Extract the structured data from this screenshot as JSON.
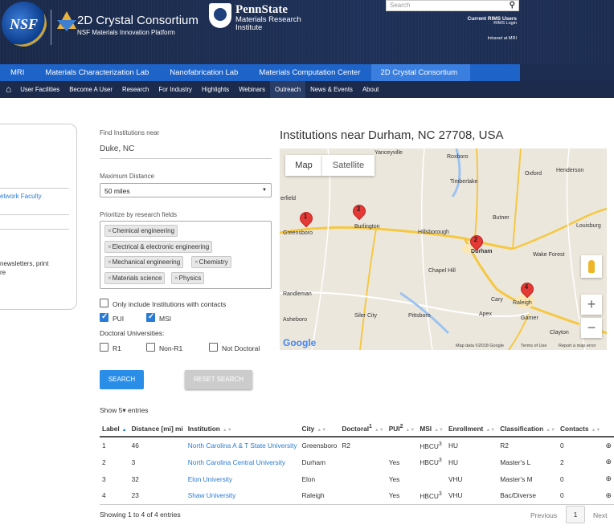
{
  "header": {
    "nsf_logo_text": "NSF",
    "consortium_title": "2D Crystal Consortium",
    "consortium_subtitle": "NSF Materials Innovation Platform",
    "pennstate_title": "PennState",
    "pennstate_sub1": "Materials Research",
    "pennstate_sub2": "Institute",
    "search_placeholder": "Search",
    "rims_users": "Current RIMS Users",
    "rims_login": "RIMS Login",
    "intranet": "Intranet at MRI"
  },
  "nav_primary": [
    "MRI",
    "Materials Characterization Lab",
    "Nanofabrication Lab",
    "Materials Computation Center",
    "2D Crystal Consortium"
  ],
  "nav_secondary": [
    "User Facilities",
    "Become A User",
    "Research",
    "For Industry",
    "Highlights",
    "Webinars",
    "Outreach",
    "News & Events",
    "About"
  ],
  "left_panel": {
    "link": "etwork Faculty",
    "text1": " newsletters, print",
    "text2": "re"
  },
  "form": {
    "find_label": "Find Institutions near",
    "find_value": "Duke, NC",
    "distance_label": "Maximum Distance",
    "distance_value": "50 miles",
    "prioritize_label": "Prioritize by research fields",
    "tags": [
      "Chemical engineering",
      "Electrical & electronic engineering",
      "Mechanical engineering",
      "Chemistry",
      "Materials science",
      "Physics"
    ],
    "tag_x": "×",
    "only_contacts": "Only include Institutions with contacts",
    "pui": "PUI",
    "msi": "MSI",
    "doctoral_label": "Doctoral Universities:",
    "r1": "R1",
    "nonr1": "Non-R1",
    "not_doctoral": "Not Doctoral",
    "search_btn": "SEARCH",
    "reset_btn": "RESET SEARCH"
  },
  "map": {
    "title": "Institutions near Durham, NC 27708, USA",
    "tab_map": "Map",
    "tab_satellite": "Satellite",
    "towns": [
      "Yanceyville",
      "Roxboro",
      "Oxford",
      "Henderson",
      "Timberlake",
      "Burlington",
      "Greensboro",
      "Butner",
      "Hillsborough",
      "Durham",
      "Louisburg",
      "Wake Forest",
      "Chapel Hill",
      "Randleman",
      "Cary",
      "Raleigh",
      "Siler City",
      "Asheboro",
      "Apex",
      "Pittsboro",
      "Garner",
      "Clayton",
      "erfield"
    ],
    "pins": [
      "1",
      "2",
      "3",
      "4"
    ],
    "zoom_in": "+",
    "zoom_out": "−",
    "google": "Google",
    "footer": [
      "Map data ©2018 Google",
      "Terms of Use",
      "Report a map error"
    ]
  },
  "table": {
    "show_prefix": "Show",
    "show_value": "5",
    "show_suffix": "entries",
    "columns": [
      "Label",
      "Distance [mi] mi",
      "Institution",
      "City",
      "Doctoral",
      "PUI",
      "MSI",
      "Enrollment",
      "Classification",
      "Contacts"
    ],
    "sup1": "1",
    "sup2": "2",
    "sup3": "3",
    "rows": [
      {
        "label": "1",
        "distance": "46",
        "institution": "North Carolina A & T State University",
        "city": "Greensboro",
        "doctoral": "R2",
        "pui": "",
        "msi": "HBCU",
        "msi_sup": "3",
        "enrollment": "HU",
        "classification": "R2",
        "contacts": "0"
      },
      {
        "label": "2",
        "distance": "3",
        "institution": "North Carolina Central University",
        "city": "Durham",
        "doctoral": "",
        "pui": "Yes",
        "msi": "HBCU",
        "msi_sup": "3",
        "enrollment": "HU",
        "classification": "Master's L",
        "contacts": "2"
      },
      {
        "label": "3",
        "distance": "32",
        "institution": "Elon University",
        "city": "Elon",
        "doctoral": "",
        "pui": "Yes",
        "msi": "",
        "msi_sup": "",
        "enrollment": "VHU",
        "classification": "Master's M",
        "contacts": "0"
      },
      {
        "label": "4",
        "distance": "23",
        "institution": "Shaw University",
        "city": "Raleigh",
        "doctoral": "",
        "pui": "Yes",
        "msi": "HBCU",
        "msi_sup": "3",
        "enrollment": "VHU",
        "classification": "Bac/Diverse",
        "contacts": "0"
      }
    ],
    "showing": "Showing 1 to 4 of 4 entries",
    "prev": "Previous",
    "page": "1",
    "next": "Next"
  }
}
